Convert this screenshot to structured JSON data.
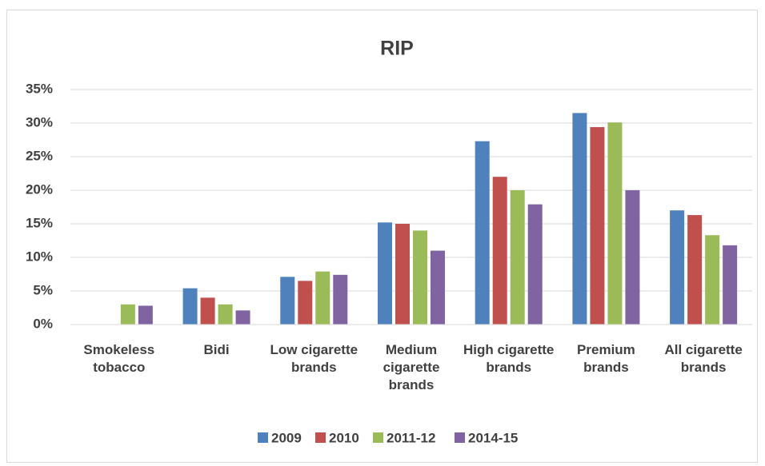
{
  "chart_data": {
    "type": "bar",
    "title": "RIP",
    "categories": [
      "Smokeless tobacco",
      "Bidi",
      "Low cigarette brands",
      "Medium cigarette brands",
      "High cigarette brands",
      "Premium brands",
      "All cigarette brands"
    ],
    "series": [
      {
        "name": "2009",
        "color": "#4f81bd",
        "values": [
          null,
          5.4,
          7.1,
          15.2,
          27.3,
          31.5,
          17.0
        ]
      },
      {
        "name": "2010",
        "color": "#c0504d",
        "values": [
          null,
          4.0,
          6.5,
          15.0,
          22.0,
          29.4,
          16.3
        ]
      },
      {
        "name": "2011-12",
        "color": "#9bbb59",
        "values": [
          3.0,
          3.0,
          7.9,
          14.0,
          20.0,
          30.1,
          13.3
        ]
      },
      {
        "name": "2014-15",
        "color": "#8064a2",
        "values": [
          2.8,
          2.1,
          7.4,
          11.0,
          17.9,
          20.0,
          11.8
        ]
      }
    ],
    "ylim": [
      0,
      35
    ],
    "yticks": [
      {
        "value": 0,
        "label": "0%"
      },
      {
        "value": 5,
        "label": "5%"
      },
      {
        "value": 10,
        "label": "10%"
      },
      {
        "value": 15,
        "label": "15%"
      },
      {
        "value": 20,
        "label": "20%"
      },
      {
        "value": 25,
        "label": "25%"
      },
      {
        "value": 30,
        "label": "30%"
      },
      {
        "value": 35,
        "label": "35%"
      }
    ],
    "grid": true,
    "legend": "bottom"
  }
}
